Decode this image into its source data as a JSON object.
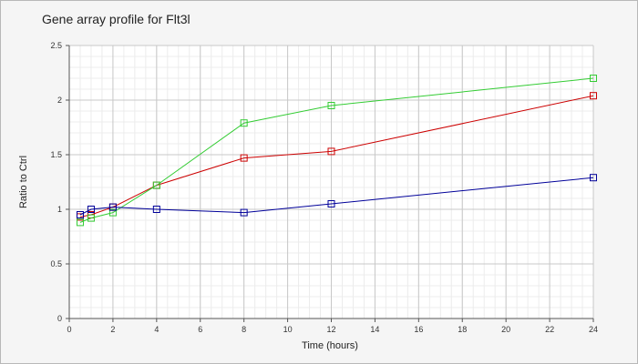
{
  "chart_data": {
    "type": "line",
    "title": "Gene array profile for Flt3l",
    "xlabel": "Time (hours)",
    "ylabel": "Ratio to Ctrl",
    "xlim": [
      0,
      24
    ],
    "ylim": [
      0,
      2.5
    ],
    "xticks": [
      "0",
      "2",
      "4",
      "6",
      "8",
      "10",
      "12",
      "14",
      "16",
      "18",
      "20",
      "22",
      "24"
    ],
    "yticks": [
      "0",
      "0.5",
      "1",
      "1.5",
      "2",
      "2.5"
    ],
    "grid": true,
    "legend": "none",
    "series": [
      {
        "color": "#cc0000",
        "marker": "square",
        "x": [
          0.5,
          1,
          2,
          4,
          8,
          12,
          24
        ],
        "y": [
          0.93,
          0.95,
          1.02,
          1.22,
          1.47,
          1.53,
          2.04
        ]
      },
      {
        "color": "#33cc33",
        "marker": "square",
        "x": [
          0.5,
          1,
          2,
          4,
          8,
          12,
          24
        ],
        "y": [
          0.88,
          0.92,
          0.97,
          1.22,
          1.79,
          1.95,
          2.2
        ]
      },
      {
        "color": "#000099",
        "marker": "square",
        "x": [
          0.5,
          1,
          2,
          4,
          8,
          12,
          24
        ],
        "y": [
          0.95,
          1.0,
          1.02,
          1.0,
          0.97,
          1.05,
          1.29
        ]
      }
    ]
  }
}
